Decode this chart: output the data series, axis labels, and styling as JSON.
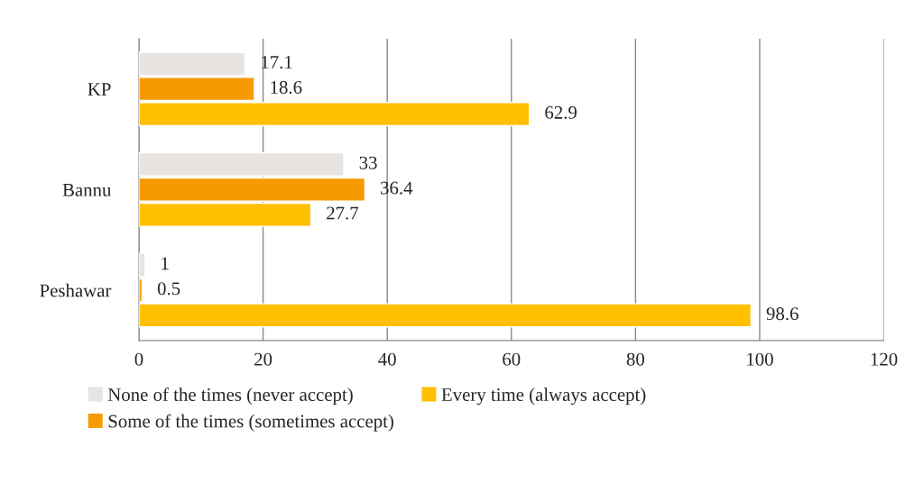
{
  "chart_data": {
    "type": "bar",
    "orientation": "horizontal",
    "categories": [
      "KP",
      "Bannu",
      "Peshawar"
    ],
    "series": [
      {
        "name": "None of the times (never accept)",
        "color": "#e8e4e2",
        "values": [
          17.1,
          33,
          1
        ]
      },
      {
        "name": "Some of the times (sometimes accept)",
        "color": "#f59a00",
        "values": [
          18.6,
          36.4,
          0.5
        ]
      },
      {
        "name": "Every time (always accept)",
        "color": "#ffc000",
        "values": [
          62.9,
          27.7,
          98.6
        ]
      }
    ],
    "xlim": [
      0,
      120
    ],
    "xticks": [
      0,
      20,
      40,
      60,
      80,
      100,
      120
    ],
    "grid": "x",
    "legend": "bottom",
    "data_labels": true
  }
}
